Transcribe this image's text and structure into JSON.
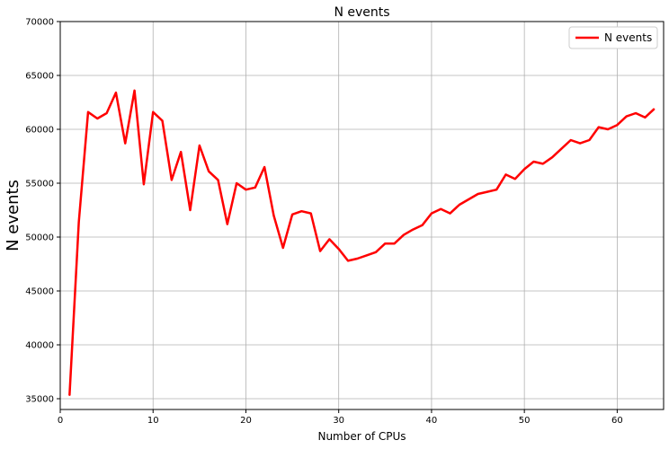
{
  "chart_data": {
    "type": "line",
    "title": "N events",
    "xlabel": "Number of CPUs",
    "ylabel": "N events",
    "xlim": [
      0,
      65
    ],
    "ylim": [
      34000,
      70000
    ],
    "x_ticks": [
      0,
      10,
      20,
      30,
      40,
      50,
      60
    ],
    "y_ticks": [
      35000,
      40000,
      45000,
      50000,
      55000,
      60000,
      65000,
      70000
    ],
    "grid": true,
    "legend_position": "top-right",
    "series": [
      {
        "name": "N events",
        "color": "#ff0000",
        "x": [
          1,
          2,
          3,
          4,
          5,
          6,
          7,
          8,
          9,
          10,
          11,
          12,
          13,
          14,
          15,
          16,
          17,
          18,
          19,
          20,
          21,
          22,
          23,
          24,
          25,
          26,
          27,
          28,
          29,
          30,
          31,
          32,
          33,
          34,
          35,
          36,
          37,
          38,
          39,
          40,
          41,
          42,
          43,
          44,
          45,
          46,
          47,
          48,
          49,
          50,
          51,
          52,
          53,
          54,
          55,
          56,
          57,
          58,
          59,
          60,
          61,
          62,
          63,
          64
        ],
        "values": [
          35300,
          51400,
          61600,
          61000,
          61500,
          63400,
          58700,
          63600,
          54900,
          61600,
          60800,
          55300,
          57900,
          52500,
          58500,
          56100,
          55300,
          51200,
          55000,
          54400,
          54600,
          56500,
          52000,
          49000,
          52100,
          52400,
          52200,
          48700,
          49800,
          48900,
          47800,
          48000,
          48300,
          48600,
          49400,
          49400,
          50200,
          50700,
          51100,
          52200,
          52600,
          52200,
          53000,
          53500,
          54000,
          54200,
          54400,
          55800,
          55400,
          56300,
          57000,
          56800,
          57400,
          58200,
          59000,
          58700,
          59000,
          60200,
          60000,
          60400,
          61200,
          61500,
          61100,
          61900
        ]
      }
    ]
  }
}
